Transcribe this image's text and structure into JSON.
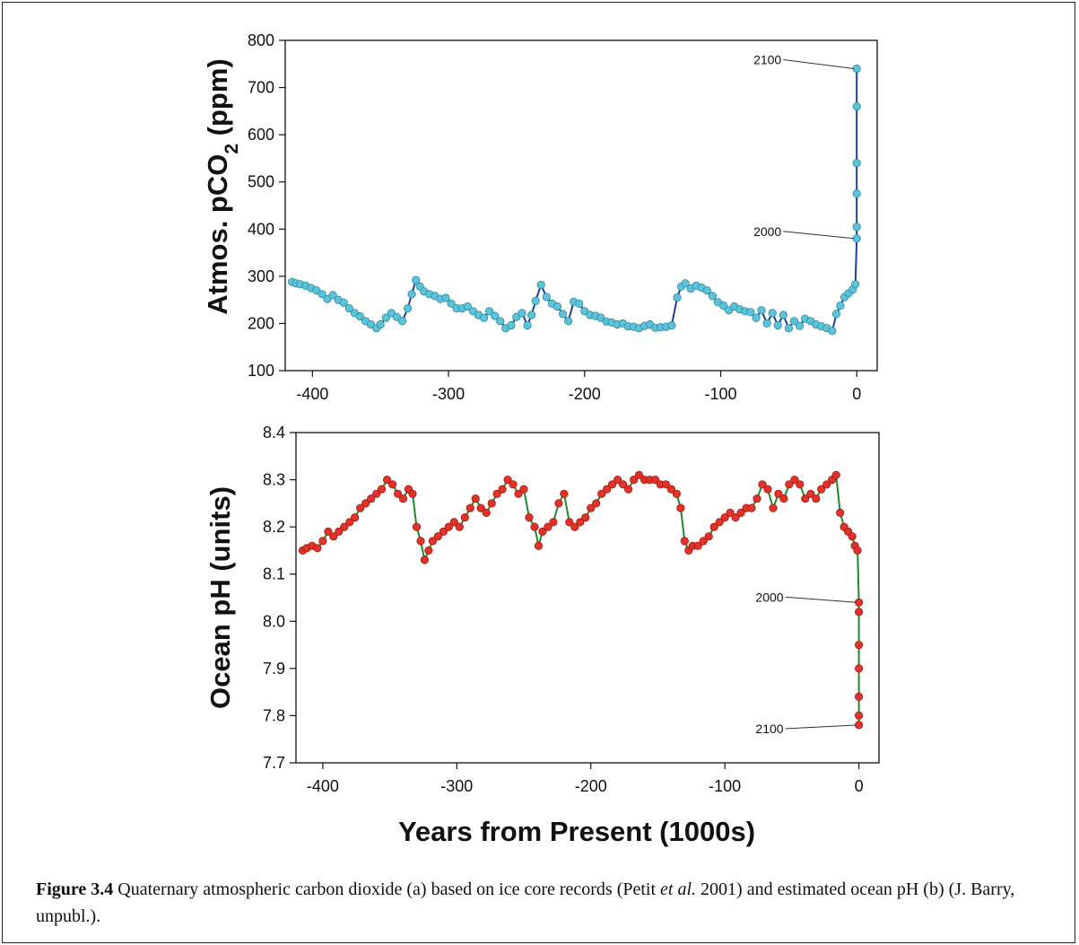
{
  "caption": {
    "label": "Figure 3.4",
    "text_1": " Quaternary atmospheric carbon dioxide (a) based on ice core records (Petit ",
    "italic": "et al.",
    "text_2": " 2001) and estimated ocean pH (b) (J. Barry, unpubl.)."
  },
  "chart_data": [
    {
      "type": "line",
      "ylabel": "Atmos. pCO",
      "ylabel_sub": "2",
      "ylabel_suffix": " (ppm)",
      "xlabel": "",
      "xlim": [
        -420,
        15
      ],
      "ylim": [
        100,
        800
      ],
      "xticks": [
        -400,
        -300,
        -200,
        -100,
        0
      ],
      "xtick_labels": [
        "-400",
        "-300",
        "-200",
        "-100",
        "0"
      ],
      "yticks": [
        100,
        200,
        300,
        400,
        500,
        600,
        700,
        800
      ],
      "ytick_labels": [
        "100",
        "200",
        "300",
        "400",
        "500",
        "600",
        "700",
        "800"
      ],
      "grid": false,
      "colors": {
        "line": "#1f3f8f",
        "marker": "#5cc4d8",
        "marker_edge": "#2e8aa3"
      },
      "series": [
        {
          "x": [
            -415,
            -412,
            -409,
            -405,
            -401,
            -397,
            -393,
            -389,
            -385,
            -381,
            -377,
            -373,
            -369,
            -365,
            -361,
            -357,
            -353,
            -350,
            -346,
            -342,
            -338,
            -334,
            -330,
            -327,
            -324,
            -321,
            -318,
            -314,
            -310,
            -306,
            -302,
            -298,
            -294,
            -290,
            -286,
            -282,
            -278,
            -274,
            -270,
            -266,
            -262,
            -258,
            -254,
            -250,
            -246,
            -242,
            -239,
            -236,
            -232,
            -228,
            -224,
            -220,
            -216,
            -212,
            -208,
            -204,
            -200,
            -196,
            -192,
            -188,
            -184,
            -180,
            -176,
            -172,
            -168,
            -164,
            -160,
            -156,
            -152,
            -148,
            -144,
            -140,
            -136,
            -132,
            -129,
            -126,
            -122,
            -118,
            -114,
            -110,
            -106,
            -102,
            -98,
            -94,
            -90,
            -86,
            -82,
            -78,
            -74,
            -70,
            -66,
            -62,
            -58,
            -54,
            -50,
            -46,
            -42,
            -38,
            -34,
            -30,
            -26,
            -22,
            -18,
            -15,
            -12,
            -9,
            -6,
            -3,
            -1,
            0,
            0,
            0,
            0,
            0,
            0
          ],
          "y": [
            288,
            285,
            283,
            280,
            275,
            270,
            262,
            252,
            260,
            250,
            244,
            232,
            222,
            215,
            205,
            198,
            190,
            198,
            212,
            222,
            214,
            205,
            232,
            262,
            292,
            278,
            268,
            262,
            258,
            252,
            254,
            242,
            232,
            232,
            236,
            226,
            218,
            212,
            226,
            216,
            205,
            190,
            196,
            214,
            222,
            196,
            218,
            248,
            282,
            256,
            242,
            236,
            220,
            205,
            246,
            242,
            226,
            218,
            216,
            212,
            204,
            202,
            198,
            200,
            194,
            193,
            190,
            195,
            198,
            191,
            192,
            193,
            196,
            255,
            278,
            285,
            274,
            280,
            276,
            270,
            258,
            245,
            238,
            228,
            236,
            230,
            226,
            224,
            212,
            228,
            200,
            222,
            196,
            218,
            190,
            205,
            195,
            210,
            205,
            198,
            194,
            190,
            184,
            220,
            238,
            256,
            264,
            272,
            283,
            380,
            405,
            475,
            540,
            660,
            740
          ]
        }
      ],
      "annotations": [
        {
          "text": "2100",
          "x": 0,
          "y": 740
        },
        {
          "text": "2000",
          "x": 0,
          "y": 380
        }
      ]
    },
    {
      "type": "line",
      "ylabel": "Ocean pH (units)",
      "xlabel": "Years from Present (1000s)",
      "xlim": [
        -420,
        15
      ],
      "ylim": [
        7.7,
        8.4
      ],
      "xticks": [
        -400,
        -300,
        -200,
        -100,
        0
      ],
      "xtick_labels": [
        "-400",
        "-300",
        "-200",
        "-100",
        "0"
      ],
      "yticks": [
        7.7,
        7.8,
        7.9,
        8.0,
        8.1,
        8.2,
        8.3,
        8.4
      ],
      "ytick_labels": [
        "7.7",
        "7.8",
        "7.9",
        "8.0",
        "8.1",
        "8.2",
        "8.3",
        "8.4"
      ],
      "grid": false,
      "colors": {
        "line": "#1e8a2e",
        "marker": "#e0332a",
        "marker_edge": "#a01a14"
      },
      "series": [
        {
          "x": [
            -415,
            -412,
            -408,
            -404,
            -400,
            -396,
            -392,
            -388,
            -384,
            -380,
            -376,
            -372,
            -368,
            -364,
            -360,
            -356,
            -352,
            -348,
            -344,
            -340,
            -336,
            -333,
            -330,
            -327,
            -324,
            -321,
            -318,
            -314,
            -310,
            -306,
            -302,
            -298,
            -294,
            -290,
            -286,
            -282,
            -278,
            -274,
            -270,
            -266,
            -262,
            -258,
            -254,
            -250,
            -246,
            -242,
            -239,
            -236,
            -232,
            -228,
            -224,
            -220,
            -216,
            -212,
            -208,
            -204,
            -200,
            -196,
            -192,
            -188,
            -184,
            -180,
            -176,
            -172,
            -168,
            -164,
            -160,
            -156,
            -152,
            -148,
            -144,
            -140,
            -136,
            -133,
            -130,
            -127,
            -124,
            -120,
            -116,
            -112,
            -108,
            -104,
            -100,
            -96,
            -92,
            -88,
            -84,
            -80,
            -76,
            -72,
            -68,
            -64,
            -60,
            -56,
            -52,
            -48,
            -44,
            -40,
            -36,
            -32,
            -28,
            -24,
            -20,
            -17,
            -14,
            -11,
            -8,
            -5,
            -3,
            -1,
            0,
            0,
            0,
            0,
            0,
            0,
            0
          ],
          "y": [
            8.15,
            8.155,
            8.16,
            8.155,
            8.17,
            8.19,
            8.18,
            8.19,
            8.2,
            8.21,
            8.22,
            8.24,
            8.25,
            8.26,
            8.27,
            8.28,
            8.3,
            8.29,
            8.27,
            8.26,
            8.28,
            8.27,
            8.2,
            8.17,
            8.13,
            8.15,
            8.17,
            8.18,
            8.19,
            8.2,
            8.21,
            8.2,
            8.22,
            8.24,
            8.26,
            8.24,
            8.23,
            8.25,
            8.27,
            8.28,
            8.3,
            8.29,
            8.27,
            8.28,
            8.22,
            8.2,
            8.16,
            8.19,
            8.2,
            8.21,
            8.25,
            8.27,
            8.21,
            8.2,
            8.21,
            8.22,
            8.24,
            8.25,
            8.27,
            8.28,
            8.29,
            8.3,
            8.29,
            8.28,
            8.3,
            8.31,
            8.3,
            8.3,
            8.3,
            8.29,
            8.29,
            8.28,
            8.27,
            8.24,
            8.17,
            8.15,
            8.16,
            8.16,
            8.17,
            8.18,
            8.2,
            8.21,
            8.22,
            8.23,
            8.22,
            8.23,
            8.24,
            8.24,
            8.26,
            8.29,
            8.28,
            8.24,
            8.27,
            8.26,
            8.29,
            8.3,
            8.29,
            8.26,
            8.27,
            8.26,
            8.28,
            8.29,
            8.3,
            8.31,
            8.23,
            8.2,
            8.19,
            8.18,
            8.16,
            8.15,
            8.04,
            8.02,
            7.95,
            7.9,
            7.84,
            7.8,
            7.78
          ]
        }
      ],
      "annotations": [
        {
          "text": "2000",
          "x": 0,
          "y": 8.04
        },
        {
          "text": "2100",
          "x": 0,
          "y": 7.78
        }
      ]
    }
  ]
}
